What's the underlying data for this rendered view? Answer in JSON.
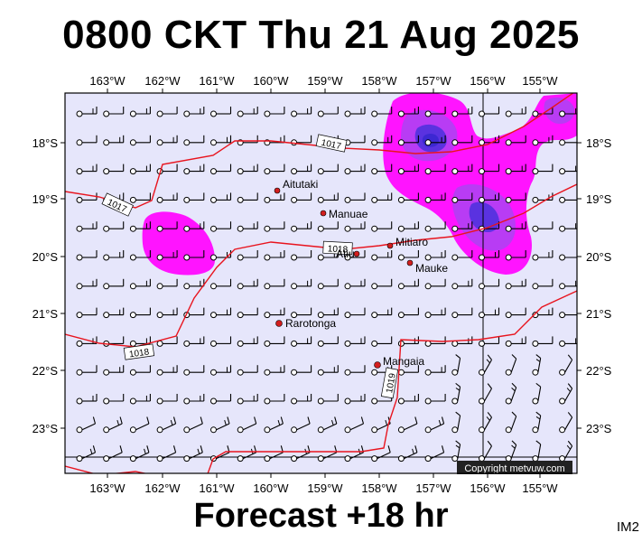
{
  "header": {
    "title": "0800 CKT Thu 21 Aug 2025"
  },
  "footer": {
    "forecast": "Forecast +18 hr",
    "corner_label": "IM2",
    "copyright": "Copyright metvuw.com"
  },
  "map": {
    "lon_labels": [
      "163°W",
      "162°W",
      "161°W",
      "160°W",
      "159°W",
      "158°W",
      "157°W",
      "156°W",
      "155°W"
    ],
    "lat_labels": [
      "18°S",
      "19°S",
      "20°S",
      "21°S",
      "22°S",
      "23°S"
    ],
    "isobar_labels": [
      "1017",
      "1017",
      "1018",
      "1018",
      "1019"
    ],
    "places": [
      {
        "name": "Aitutaki"
      },
      {
        "name": "Manuae"
      },
      {
        "name": "Mitiaro"
      },
      {
        "name": "Atiu"
      },
      {
        "name": "Mauke"
      },
      {
        "name": "Rarotonga"
      },
      {
        "name": "Mangaia"
      }
    ],
    "colors": {
      "ocean": "#e6e6fb",
      "isobar": "#e8141e",
      "rain_light": "#ff14ff",
      "rain_mid": "#9a3cf0",
      "rain_heavy": "#3c28d2",
      "town_dot": "#d21e1e"
    }
  }
}
